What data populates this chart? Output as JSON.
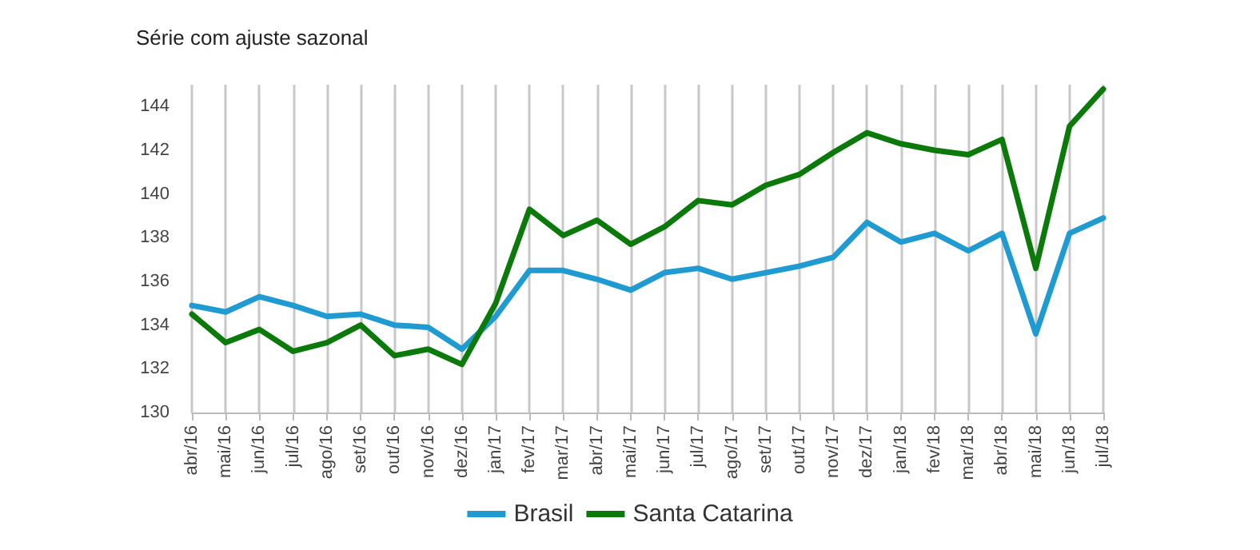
{
  "chart_data": {
    "type": "line",
    "subtitle": "Série com ajuste sazonal",
    "categories": [
      "abr/16",
      "mai/16",
      "jun/16",
      "jul/16",
      "ago/16",
      "set/16",
      "out/16",
      "nov/16",
      "dez/16",
      "jan/17",
      "fev/17",
      "mar/17",
      "abr/17",
      "mai/17",
      "jun/17",
      "jul/17",
      "ago/17",
      "set/17",
      "out/17",
      "nov/17",
      "dez/17",
      "jan/18",
      "fev/18",
      "mar/18",
      "abr/18",
      "mai/18",
      "jun/18",
      "jul/18"
    ],
    "series": [
      {
        "name": "Brasil",
        "color": "#1f9bd1",
        "values": [
          134.9,
          134.6,
          135.3,
          134.9,
          134.4,
          134.5,
          134.0,
          133.9,
          132.9,
          134.4,
          136.5,
          136.5,
          136.1,
          135.6,
          136.4,
          136.6,
          136.1,
          136.4,
          136.7,
          137.1,
          138.7,
          137.8,
          138.2,
          137.4,
          138.2,
          133.6,
          138.2,
          138.9
        ]
      },
      {
        "name": "Santa Catarina",
        "color": "#0b7a0b",
        "values": [
          134.5,
          133.2,
          133.8,
          132.8,
          133.2,
          134.0,
          132.6,
          132.9,
          132.2,
          135.0,
          139.3,
          138.1,
          138.8,
          137.7,
          138.5,
          139.7,
          139.5,
          140.4,
          140.9,
          141.9,
          142.8,
          142.3,
          142.0,
          141.8,
          142.5,
          136.6,
          143.1,
          144.8
        ]
      }
    ],
    "ylim": [
      130,
      145
    ],
    "yticks": [
      130,
      132,
      134,
      136,
      138,
      140,
      142,
      144
    ],
    "grid": "x",
    "legend": "bottom",
    "marker": "none",
    "line_style": "solid"
  }
}
